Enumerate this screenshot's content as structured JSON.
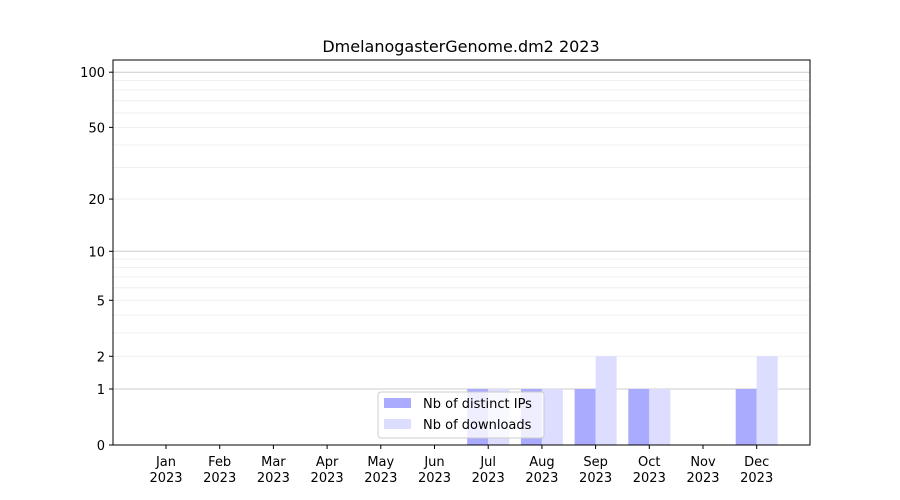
{
  "chart_data": {
    "type": "bar",
    "title": "DmelanogasterGenome.dm2 2023",
    "xlabel": "",
    "ylabel": "",
    "yscale": "symlog (log10(1+y))",
    "ylim": [
      0,
      117
    ],
    "yticks": [
      0,
      1,
      2,
      5,
      10,
      20,
      50,
      100
    ],
    "grid": true,
    "legend_position": "lower-center",
    "categories": [
      "Jan\n2023",
      "Feb\n2023",
      "Mar\n2023",
      "Apr\n2023",
      "May\n2023",
      "Jun\n2023",
      "Jul\n2023",
      "Aug\n2023",
      "Sep\n2023",
      "Oct\n2023",
      "Nov\n2023",
      "Dec\n2023"
    ],
    "series": [
      {
        "name": "Nb of distinct IPs",
        "color": "#aaaaff",
        "values": [
          0,
          0,
          0,
          0,
          0,
          0,
          1,
          1,
          1,
          1,
          0,
          1
        ]
      },
      {
        "name": "Nb of downloads",
        "color": "#ddddff",
        "values": [
          0,
          0,
          0,
          0,
          0,
          0,
          1,
          1,
          2,
          1,
          0,
          2
        ]
      }
    ]
  }
}
